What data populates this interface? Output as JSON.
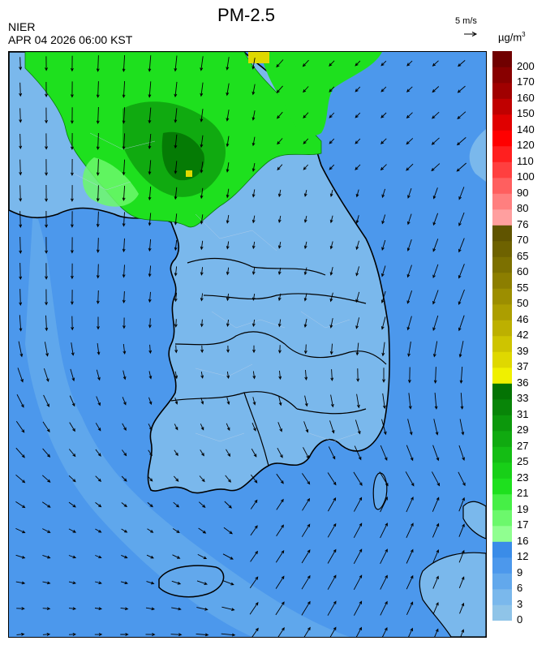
{
  "header": {
    "title": "PM-2.5",
    "org": "NIER",
    "timestamp": "APR 04 2026 06:00 KST",
    "wind_scale": "5 m/s",
    "unit_base": "µg/m",
    "unit_exp": "3"
  },
  "legend": {
    "bins": [
      {
        "label": "0",
        "color": "#8fc4e8"
      },
      {
        "label": "3",
        "color": "#7ab8ec"
      },
      {
        "label": "6",
        "color": "#62a8ec"
      },
      {
        "label": "9",
        "color": "#4c98ec"
      },
      {
        "label": "12",
        "color": "#3a8ce8"
      },
      {
        "label": "16",
        "color": "#90ff90"
      },
      {
        "label": "17",
        "color": "#6cf86c"
      },
      {
        "label": "19",
        "color": "#46ef46"
      },
      {
        "label": "21",
        "color": "#1ee01e"
      },
      {
        "label": "23",
        "color": "#18cf18"
      },
      {
        "label": "25",
        "color": "#14bd14"
      },
      {
        "label": "27",
        "color": "#10aa10"
      },
      {
        "label": "29",
        "color": "#0c980c"
      },
      {
        "label": "31",
        "color": "#088508"
      },
      {
        "label": "33",
        "color": "#047304"
      },
      {
        "label": "36",
        "color": "#f0f000"
      },
      {
        "label": "37",
        "color": "#dfd800"
      },
      {
        "label": "39",
        "color": "#cec400"
      },
      {
        "label": "42",
        "color": "#bdb000"
      },
      {
        "label": "46",
        "color": "#ac9e00"
      },
      {
        "label": "50",
        "color": "#9c8e00"
      },
      {
        "label": "55",
        "color": "#8c7e00"
      },
      {
        "label": "60",
        "color": "#7c7000"
      },
      {
        "label": "65",
        "color": "#6e6200"
      },
      {
        "label": "70",
        "color": "#605400"
      },
      {
        "label": "76",
        "color": "#ff9f9f"
      },
      {
        "label": "80",
        "color": "#ff7f7f"
      },
      {
        "label": "90",
        "color": "#ff5f5f"
      },
      {
        "label": "100",
        "color": "#ff3f3f"
      },
      {
        "label": "110",
        "color": "#ff1f1f"
      },
      {
        "label": "120",
        "color": "#ff0000"
      },
      {
        "label": "140",
        "color": "#e00000"
      },
      {
        "label": "150",
        "color": "#c00000"
      },
      {
        "label": "160",
        "color": "#a00000"
      },
      {
        "label": "170",
        "color": "#880000"
      },
      {
        "label": "200",
        "color": "#700000"
      }
    ]
  },
  "map": {
    "colors": {
      "sea": "#4c98ec",
      "sea_light": "#62a8ec",
      "land": "#7ab8ec",
      "land_light": "#8fc4e8",
      "green": "#1ee01e",
      "green_mid": "#10aa10",
      "green_dark": "#047304",
      "green_light": "#6cf86c",
      "yellow": "#dfd800"
    }
  }
}
